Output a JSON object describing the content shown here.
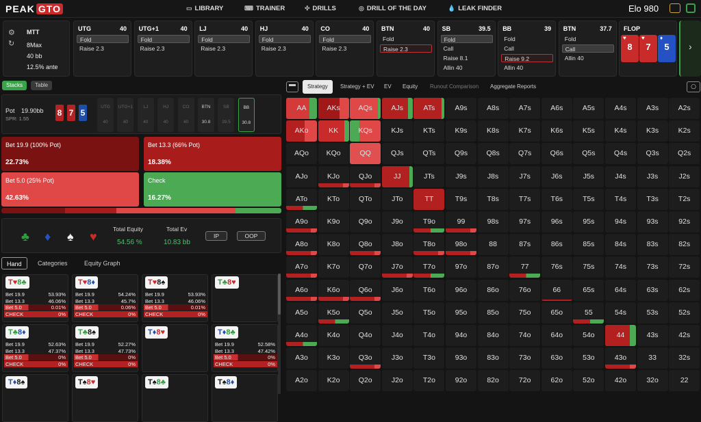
{
  "brand": {
    "left": "PEAK",
    "right": "GTO"
  },
  "nav": [
    {
      "icon": "library-icon",
      "label": "LIBRARY"
    },
    {
      "icon": "trainer-icon",
      "label": "TRAINER"
    },
    {
      "icon": "drills-icon",
      "label": "DRILLS"
    },
    {
      "icon": "drill-day-icon",
      "label": "DRILL OF THE DAY"
    },
    {
      "icon": "leak-icon",
      "label": "LEAK FINDER"
    }
  ],
  "elo": "Elo 980",
  "game": {
    "type": "MTT",
    "format": "8Max",
    "depth": "40 bb",
    "ante": "12.5% ante"
  },
  "positions": [
    {
      "pos": "UTG",
      "stack": "40",
      "options": [
        "Fold",
        "Raise 2.3"
      ],
      "selected": 0
    },
    {
      "pos": "UTG+1",
      "stack": "40",
      "options": [
        "Fold",
        "Raise 2.3"
      ],
      "selected": 0
    },
    {
      "pos": "LJ",
      "stack": "40",
      "options": [
        "Fold",
        "Raise 2.3"
      ],
      "selected": 0
    },
    {
      "pos": "HJ",
      "stack": "40",
      "options": [
        "Fold",
        "Raise 2.3"
      ],
      "selected": 0
    },
    {
      "pos": "CO",
      "stack": "40",
      "options": [
        "Fold",
        "Raise 2.3"
      ],
      "selected": 0
    },
    {
      "pos": "BTN",
      "stack": "40",
      "options": [
        "Fold",
        "Raise 2.3"
      ],
      "selected": 1,
      "red": true
    },
    {
      "pos": "SB",
      "stack": "39.5",
      "options": [
        "Fold",
        "Call",
        "Raise 8.1",
        "Allin 40"
      ],
      "selected": 0
    },
    {
      "pos": "BB",
      "stack": "39",
      "options": [
        "Fold",
        "Call",
        "Raise 9.2",
        "Allin 40"
      ],
      "selected": 2,
      "red": true
    },
    {
      "pos": "BTN",
      "stack": "37.7",
      "options": [
        "Fold",
        "Call",
        "Allin 40"
      ],
      "selected": 1
    }
  ],
  "flop": {
    "label": "FLOP",
    "cards": [
      {
        "rank": "8",
        "suit": "♥",
        "color": "#c92a2a"
      },
      {
        "rank": "7",
        "suit": "♥",
        "color": "#c92a2a"
      },
      {
        "rank": "5",
        "suit": "♦",
        "color": "#2451c4"
      }
    ]
  },
  "view_toggle": {
    "stacks": "Stacks",
    "table": "Table"
  },
  "board": {
    "pot_label": "Pot",
    "pot": "19.90bb",
    "spr": "SPR: 1.55",
    "cards": [
      {
        "rank": "8",
        "color": "#b42323"
      },
      {
        "rank": "7",
        "color": "#b42323"
      },
      {
        "rank": "5",
        "color": "#1f4ea8"
      }
    ]
  },
  "seats": [
    {
      "n": "UTG",
      "v": "40"
    },
    {
      "n": "UTG+1",
      "v": "40"
    },
    {
      "n": "LJ",
      "v": "40"
    },
    {
      "n": "HJ",
      "v": "40"
    },
    {
      "n": "CO",
      "v": "40"
    },
    {
      "n": "BTN",
      "v": "30.8",
      "active": true
    },
    {
      "n": "SB",
      "v": "39.5"
    },
    {
      "n": "BB",
      "v": "30.8",
      "hero": true
    }
  ],
  "actions": [
    {
      "label": "Bet 19.9 (100% Pot)",
      "pct": "22.73%",
      "color": "#7a1212"
    },
    {
      "label": "Bet 13.3 (66% Pot)",
      "pct": "18.38%",
      "color": "#a81c1c"
    },
    {
      "label": "Bet 5.0 (25% Pot)",
      "pct": "42.63%",
      "color": "#e04848"
    },
    {
      "label": "Check",
      "pct": "16.27%",
      "color": "#4caa55"
    }
  ],
  "equity": {
    "suits": [
      "♣",
      "♦",
      "♠",
      "♥"
    ],
    "total_equity_label": "Total Equity",
    "total_equity": "54.56 %",
    "total_ev_label": "Total Ev",
    "total_ev": "10.83 bb",
    "ip": "IP",
    "oop": "OOP"
  },
  "hand_tabs": [
    "Hand",
    "Categories",
    "Equity Graph"
  ],
  "combos": [
    {
      "cards": [
        [
          "T",
          "♥",
          "r"
        ],
        [
          "8",
          "♣",
          "g"
        ]
      ],
      "rows": [
        [
          "Bet 19.9",
          "53.93%"
        ],
        [
          "Bet 13.3",
          "46.06%"
        ],
        [
          "Bet 5.0",
          "0.01%"
        ],
        [
          "CHECK",
          "0%"
        ]
      ]
    },
    {
      "cards": [
        [
          "T",
          "♥",
          "r"
        ],
        [
          "8",
          "♦",
          "b"
        ]
      ],
      "rows": [
        [
          "Bet 19.9",
          "54.24%"
        ],
        [
          "Bet 13.3",
          "45.7%"
        ],
        [
          "Bet 5.0",
          "0.06%"
        ],
        [
          "CHECK",
          "0%"
        ]
      ]
    },
    {
      "cards": [
        [
          "T",
          "♥",
          "r"
        ],
        [
          "8",
          "♠",
          "k"
        ]
      ],
      "rows": [
        [
          "Bet 19.9",
          "53.93%"
        ],
        [
          "Bet 13.3",
          "46.06%"
        ],
        [
          "Bet 5.0",
          "0.01%"
        ],
        [
          "CHECK",
          "0%"
        ]
      ]
    },
    {
      "cards": [
        [
          "T",
          "♣",
          "g"
        ],
        [
          "8",
          "♥",
          "r"
        ]
      ],
      "rows": []
    },
    {
      "cards": [
        [
          "T",
          "♣",
          "g"
        ],
        [
          "8",
          "♦",
          "b"
        ]
      ],
      "rows": [
        [
          "Bet 19.9",
          "52.63%"
        ],
        [
          "Bet 13.3",
          "47.37%"
        ],
        [
          "Bet 5.0",
          "0%"
        ],
        [
          "CHECK",
          "0%"
        ]
      ]
    },
    {
      "cards": [
        [
          "T",
          "♣",
          "g"
        ],
        [
          "8",
          "♠",
          "k"
        ]
      ],
      "rows": [
        [
          "Bet 19.9",
          "52.27%"
        ],
        [
          "Bet 13.3",
          "47.73%"
        ],
        [
          "Bet 5.0",
          "0%"
        ],
        [
          "CHECK",
          "0%"
        ]
      ]
    },
    {
      "cards": [
        [
          "T",
          "♦",
          "b"
        ],
        [
          "8",
          "♥",
          "r"
        ]
      ],
      "rows": []
    },
    {
      "cards": [
        [
          "T",
          "♦",
          "b"
        ],
        [
          "8",
          "♣",
          "g"
        ]
      ],
      "rows": [
        [
          "Bet 19.9",
          "52.58%"
        ],
        [
          "Bet 13.3",
          "47.42%"
        ],
        [
          "Bet 5.0",
          "0%"
        ],
        [
          "CHECK",
          "0%"
        ]
      ]
    },
    {
      "cards": [
        [
          "T",
          "♦",
          "b"
        ],
        [
          "8",
          "♠",
          "k"
        ]
      ],
      "rows": []
    },
    {
      "cards": [
        [
          "T",
          "♠",
          "k"
        ],
        [
          "8",
          "♥",
          "r"
        ]
      ],
      "rows": []
    },
    {
      "cards": [
        [
          "T",
          "♠",
          "k"
        ],
        [
          "8",
          "♣",
          "g"
        ]
      ],
      "rows": []
    },
    {
      "cards": [
        [
          "T",
          "♠",
          "k"
        ],
        [
          "8",
          "♦",
          "b"
        ]
      ],
      "rows": []
    }
  ],
  "grid_tabs": [
    "Strategy",
    "Strategy + EV",
    "EV",
    "Equity",
    "Runout Comparison",
    "Aggregate Reports"
  ],
  "ranks": [
    "A",
    "K",
    "Q",
    "J",
    "T",
    "9",
    "8",
    "7",
    "6",
    "5",
    "4",
    "3",
    "2"
  ],
  "highlights": {
    "AA": [
      "#d43a3a",
      75,
      "#4caa55"
    ],
    "AKs": [
      "#a01818",
      70,
      "#e04848"
    ],
    "AQs": [
      "#e04848",
      90,
      "#4caa55"
    ],
    "AJs": [
      "#b32020",
      85,
      "#4caa55"
    ],
    "ATs": [
      "#b32020",
      90,
      "#4caa55"
    ],
    "AKo": [
      "#b32020",
      60,
      "#e04848"
    ],
    "KK": [
      "#c92a2a",
      85,
      "#4caa55"
    ],
    "KQs": [
      "#4caa55",
      30,
      "#e04848"
    ],
    "QQ": [
      "#e05050",
      100,
      "#e05050"
    ],
    "JJ": [
      "#b32020",
      90,
      "#4caa55"
    ],
    "TT": [
      "#b32020",
      100,
      "#b32020"
    ],
    "KJo": [
      "base-red",
      "b"
    ],
    "QJo": [
      "base-red",
      "b"
    ],
    "ATo": [
      "base-mix",
      "b"
    ],
    "A9o": [
      "base-red",
      "b"
    ],
    "T9o": [
      "base-mix",
      "b"
    ],
    "99": [
      "base-red",
      "b"
    ],
    "A8o": [
      "base-red",
      "b"
    ],
    "Q8o": [
      "base-red",
      "b"
    ],
    "T8o": [
      "base-red",
      "b"
    ],
    "98o": [
      "base-red",
      "b"
    ],
    "A7o": [
      "base-red",
      "b"
    ],
    "J7o": [
      "base-red",
      "b"
    ],
    "T7o": [
      "base-mix",
      "b"
    ],
    "77": [
      "base-mix",
      "b"
    ],
    "A6o": [
      "base-red",
      "b"
    ],
    "K6o": [
      "base-red",
      "b"
    ],
    "Q6o": [
      "base-red",
      "b"
    ],
    "66": [
      "base-thin",
      "b"
    ],
    "K5o": [
      "base-mix",
      "b"
    ],
    "55": [
      "base-mix",
      "b"
    ],
    "A4o": [
      "base-mix",
      "b"
    ],
    "44": [
      "#b32020",
      80,
      "#4caa55"
    ],
    "Q3o": [
      "base-red",
      "b"
    ],
    "43o": [
      "base-red",
      "b"
    ]
  }
}
